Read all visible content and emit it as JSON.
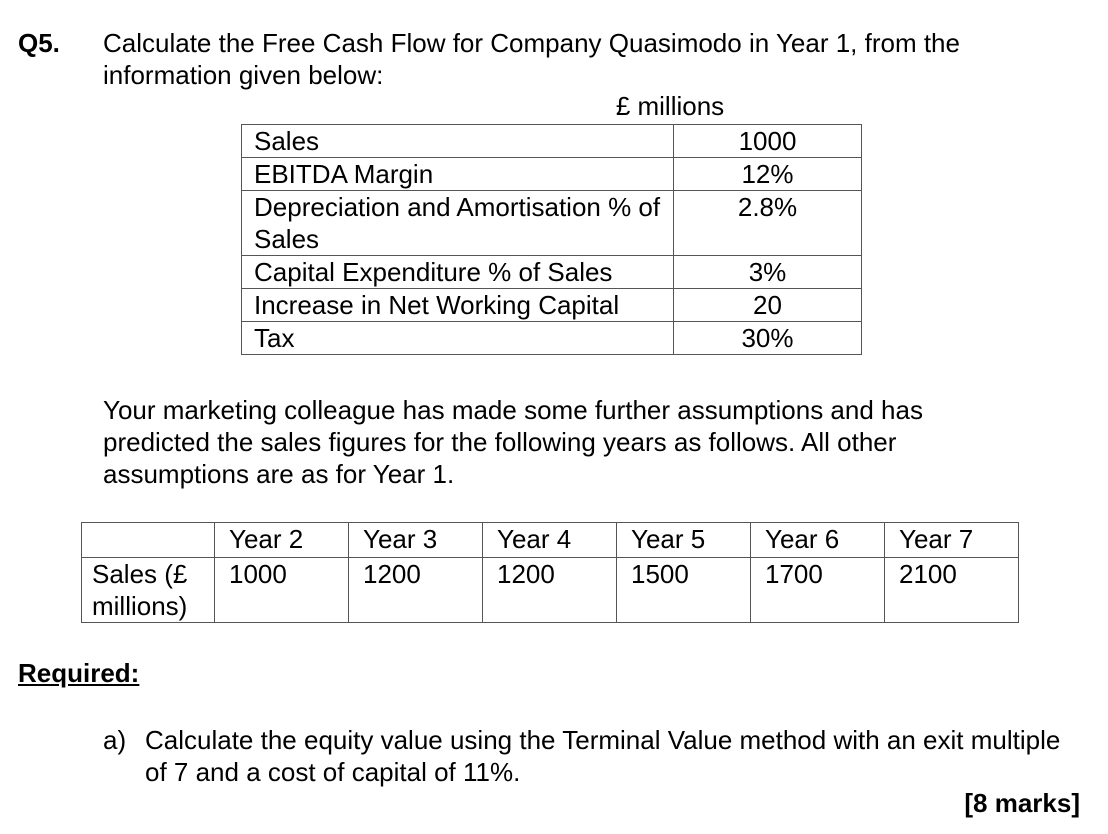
{
  "question": {
    "number": "Q5.",
    "text": "Calculate the Free Cash Flow for Company Quasimodo in Year 1, from the information given below:"
  },
  "table1": {
    "unit": "£ millions",
    "rows": [
      [
        "Sales",
        "1000"
      ],
      [
        "EBITDA Margin",
        "12%"
      ],
      [
        "Depreciation and Amortisation % of Sales",
        "2.8%"
      ],
      [
        "Capital Expenditure % of Sales",
        "3%"
      ],
      [
        "Increase in Net Working Capital",
        "20"
      ],
      [
        "Tax",
        "30%"
      ]
    ]
  },
  "paragraph": "Your marketing colleague has made some further assumptions and has predicted the sales figures for the following years as follows. All other assumptions are as for Year 1.",
  "table2": {
    "headers": [
      "Year 2",
      "Year 3",
      "Year 4",
      "Year 5",
      "Year 6",
      "Year 7"
    ],
    "rows": [
      [
        "Sales (£ millions)",
        "1000",
        "1200",
        "1200",
        "1500",
        "1700",
        "2100"
      ]
    ]
  },
  "required": {
    "heading": "Required:",
    "parts": [
      {
        "label": "a)",
        "text": "Calculate the equity value using the Terminal Value method with an exit multiple of 7 and a cost of capital of 11%.",
        "marks": "[8 marks]"
      }
    ]
  }
}
